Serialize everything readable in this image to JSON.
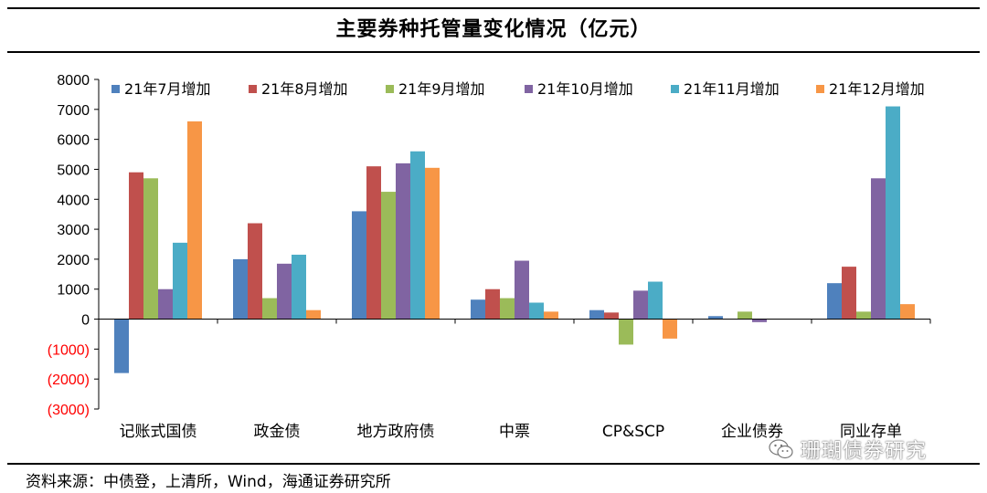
{
  "title": "主要券种托管量变化情况（亿元）",
  "source": "资料来源：中债登，上清所，Wind，海通证券研究所",
  "watermark": "珊瑚债券研究",
  "chart_data": {
    "type": "bar",
    "categories": [
      "记账式国债",
      "政金债",
      "地方政府债",
      "中票",
      "CP&SCP",
      "企业债券",
      "同业存单"
    ],
    "series": [
      {
        "name": "21年7月增加",
        "color": "#4f81bd",
        "values": [
          -1800,
          2000,
          3600,
          650,
          300,
          100,
          1200
        ]
      },
      {
        "name": "21年8月增加",
        "color": "#c0504d",
        "values": [
          4900,
          3200,
          5100,
          1000,
          220,
          0,
          1750
        ]
      },
      {
        "name": "21年9月增加",
        "color": "#9bbb59",
        "values": [
          4700,
          700,
          4250,
          700,
          -850,
          250,
          250
        ]
      },
      {
        "name": "21年10月增加",
        "color": "#8064a2",
        "values": [
          1000,
          1850,
          5200,
          1950,
          950,
          -100,
          4700
        ]
      },
      {
        "name": "21年11月增加",
        "color": "#4bacc6",
        "values": [
          2550,
          2150,
          5600,
          550,
          1250,
          0,
          7100
        ]
      },
      {
        "name": "21年12月增加",
        "color": "#f79646",
        "values": [
          6600,
          300,
          5050,
          250,
          -650,
          0,
          500
        ]
      }
    ],
    "ylim": [
      -3000,
      8000
    ],
    "yticks": [
      8000,
      7000,
      6000,
      5000,
      4000,
      3000,
      2000,
      1000,
      0,
      -1000,
      -2000,
      -3000
    ],
    "ytick_labels": [
      "8000",
      "7000",
      "6000",
      "5000",
      "4000",
      "3000",
      "2000",
      "1000",
      "0",
      "(1000)",
      "(2000)",
      "(3000)"
    ],
    "negative_tick_color": "#ff0000",
    "legend_position": "top",
    "grid": false
  }
}
